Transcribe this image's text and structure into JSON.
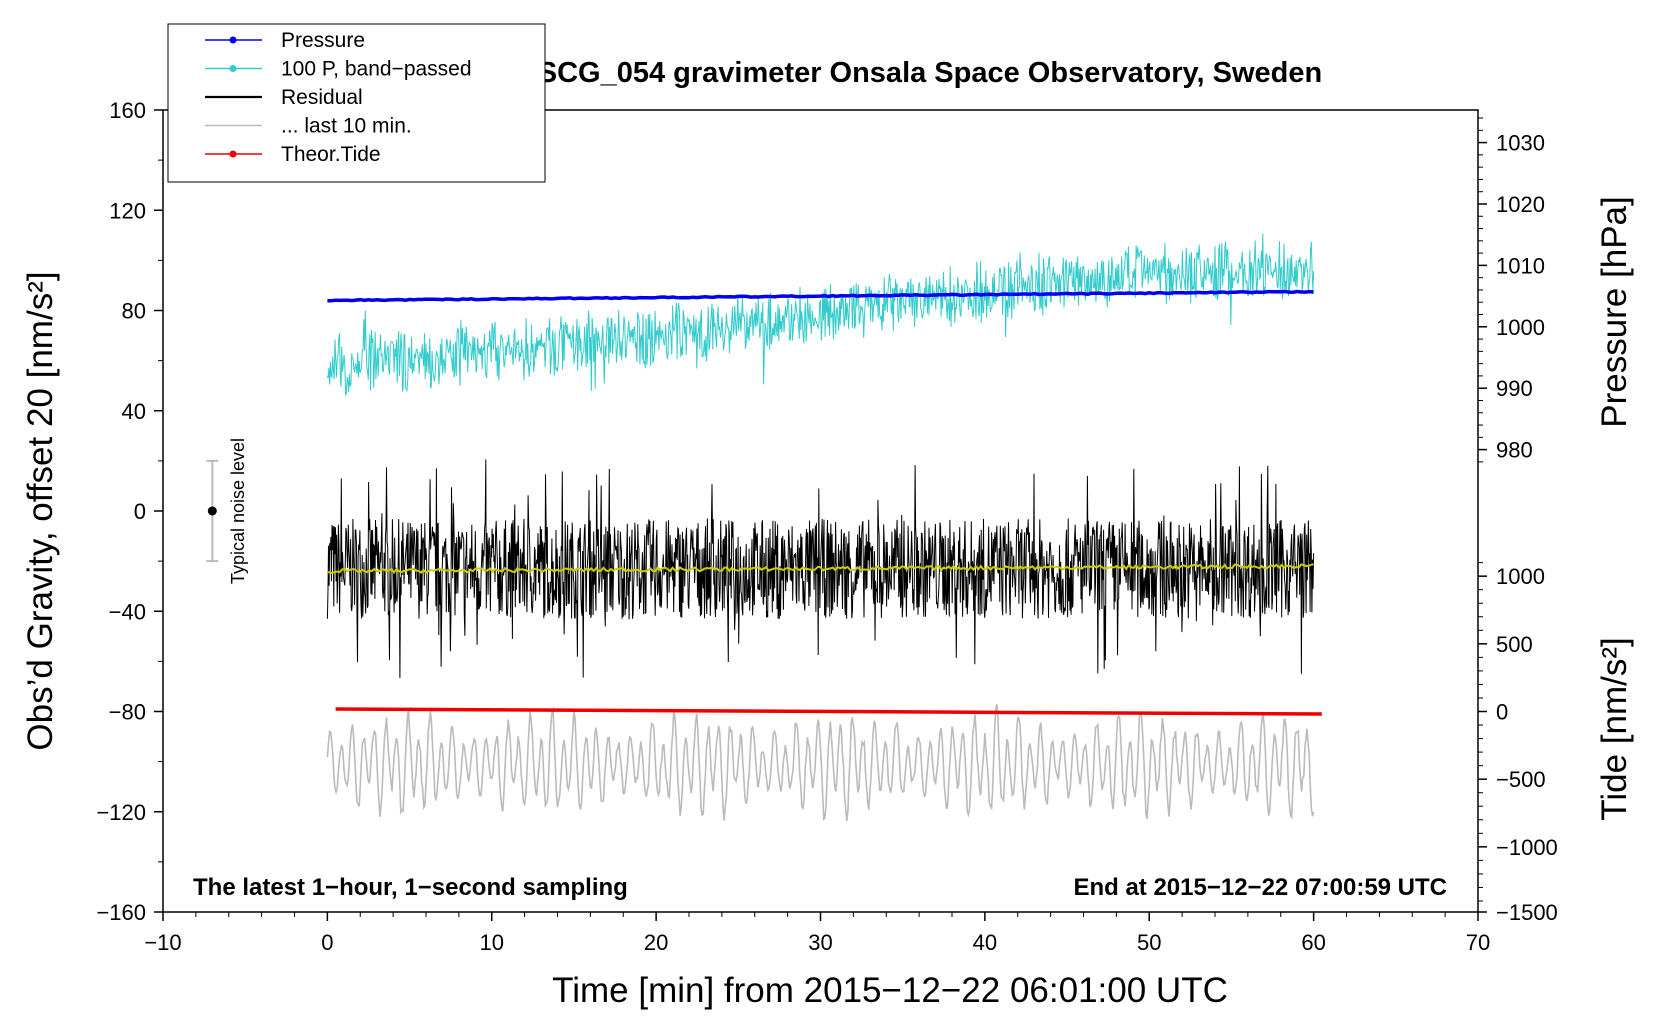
{
  "chart_data": {
    "type": "line",
    "title": "SCG_054 gravimeter Onsala Space Observatory, Sweden",
    "xlabel": "Time [min] from 2015−12−22 06:01:00 UTC",
    "ylabel_left": "Obs’d Gravity, offset 20 [nm/s²]",
    "ylabel_right_top": "Pressure [hPa]",
    "ylabel_right_bottom": "Tide [nm/s²]",
    "xlim": [
      -10,
      70
    ],
    "ylim_left": [
      -160,
      160
    ],
    "x_ticks": [
      "−10",
      "0",
      "10",
      "20",
      "30",
      "40",
      "50",
      "60",
      "70"
    ],
    "y_ticks_left": [
      "160",
      "120",
      "80",
      "40",
      "0",
      "−40",
      "−80",
      "−120",
      "−160"
    ],
    "pressure_ticks": [
      "1030",
      "1020",
      "1010",
      "1000",
      "990",
      "980"
    ],
    "tide_ticks": [
      "1000",
      "500",
      "0",
      "−500",
      "−1000",
      "−1500"
    ],
    "pressure_axis": {
      "values": [
        1030,
        1020,
        1010,
        1000,
        990,
        980
      ],
      "gravity_equiv": [
        147,
        122.5,
        98,
        73.5,
        49,
        24.5
      ]
    },
    "tide_axis": {
      "values": [
        1000,
        500,
        0,
        -500,
        -1000,
        -1500
      ],
      "gravity_equiv": [
        -26,
        -53,
        -80,
        -107,
        -134,
        -160
      ]
    },
    "legend": [
      {
        "label": "Pressure",
        "color": "#0000ee",
        "marker": true
      },
      {
        "label": "100 P, band−passed",
        "color": "#33cccc",
        "marker": true
      },
      {
        "label": "Residual",
        "color": "#000000",
        "marker": false
      },
      {
        "label": "... last 10 min.",
        "color": "#bbbbbb",
        "marker": false
      },
      {
        "label": "Theor.Tide",
        "color": "#ee0000",
        "marker": true
      }
    ],
    "annotation_left": "The latest 1−hour, 1−second sampling",
    "annotation_right": "End at 2015−12−22 07:00:59 UTC",
    "noise_label": "Typical noise level",
    "noise_bar": {
      "x": -7,
      "center": 0,
      "half_range": 20
    },
    "series": [
      {
        "name": "Pressure",
        "color": "#0000ee",
        "x_range": [
          0,
          60
        ],
        "start": 84,
        "end": 87.5
      },
      {
        "name": "100 P, band−passed",
        "color": "#33cccc",
        "x_range": [
          0,
          60
        ],
        "trend_x": [
          0,
          10,
          20,
          30,
          40,
          50,
          60
        ],
        "trend_y": [
          58,
          63,
          70,
          78,
          88,
          95,
          96
        ],
        "amplitude": 10
      },
      {
        "name": "Residual",
        "color": "#000000",
        "x_range": [
          0,
          60
        ],
        "level": -23,
        "amplitude": 20
      },
      {
        "name": "Residual mean",
        "color": "#cccc00",
        "x_range": [
          0,
          60
        ],
        "start": -24,
        "end": -22
      },
      {
        "name": "... last 10 min.",
        "color": "#bbbbbb",
        "x_range": [
          0,
          60
        ],
        "level": -101,
        "amplitude": 22
      },
      {
        "name": "Theor.Tide",
        "color": "#ee0000",
        "x_range": [
          0.5,
          60.5
        ],
        "start": -79,
        "end": -81
      }
    ],
    "colors": {
      "axis": "#000000",
      "background": "#ffffff",
      "noise_bar": "#bbbbbb"
    }
  }
}
